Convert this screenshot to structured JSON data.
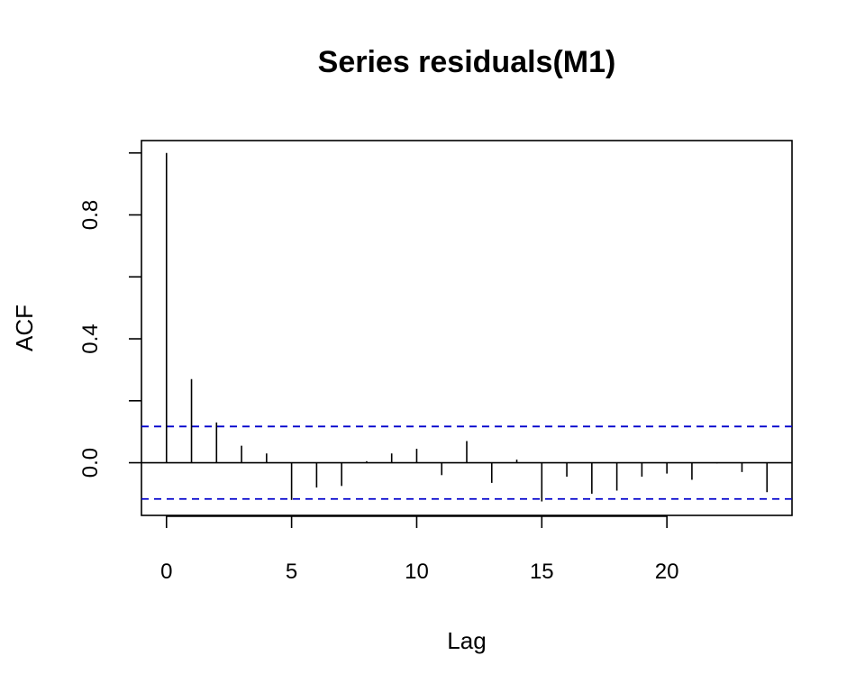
{
  "chart_data": {
    "type": "bar",
    "title": "Series  residuals(M1)",
    "xlabel": "Lag",
    "ylabel": "ACF",
    "xlim": [
      -1,
      25
    ],
    "ylim": [
      -0.17,
      1.04
    ],
    "x_ticks": [
      0,
      5,
      10,
      15,
      20
    ],
    "x_tick_labels": [
      "0",
      "5",
      "10",
      "15",
      "20"
    ],
    "y_ticks": [
      0.0,
      0.2,
      0.4,
      0.6,
      0.8,
      1.0
    ],
    "y_tick_labels": [
      "0.0",
      "",
      "0.4",
      "",
      "0.8",
      ""
    ],
    "lags": [
      0,
      1,
      2,
      3,
      4,
      5,
      6,
      7,
      8,
      9,
      10,
      11,
      12,
      13,
      14,
      15,
      16,
      17,
      18,
      19,
      20,
      21,
      22,
      23,
      24
    ],
    "values": [
      1.0,
      0.27,
      0.13,
      0.055,
      0.03,
      -0.12,
      -0.08,
      -0.075,
      0.005,
      0.03,
      0.045,
      -0.04,
      0.07,
      -0.065,
      0.01,
      -0.125,
      -0.045,
      -0.1,
      -0.09,
      -0.045,
      -0.035,
      -0.055,
      -0.002,
      -0.03,
      -0.095
    ],
    "confidence_bound": 0.117,
    "confidence_color": "#0000CC",
    "bar_color": "#000000"
  }
}
